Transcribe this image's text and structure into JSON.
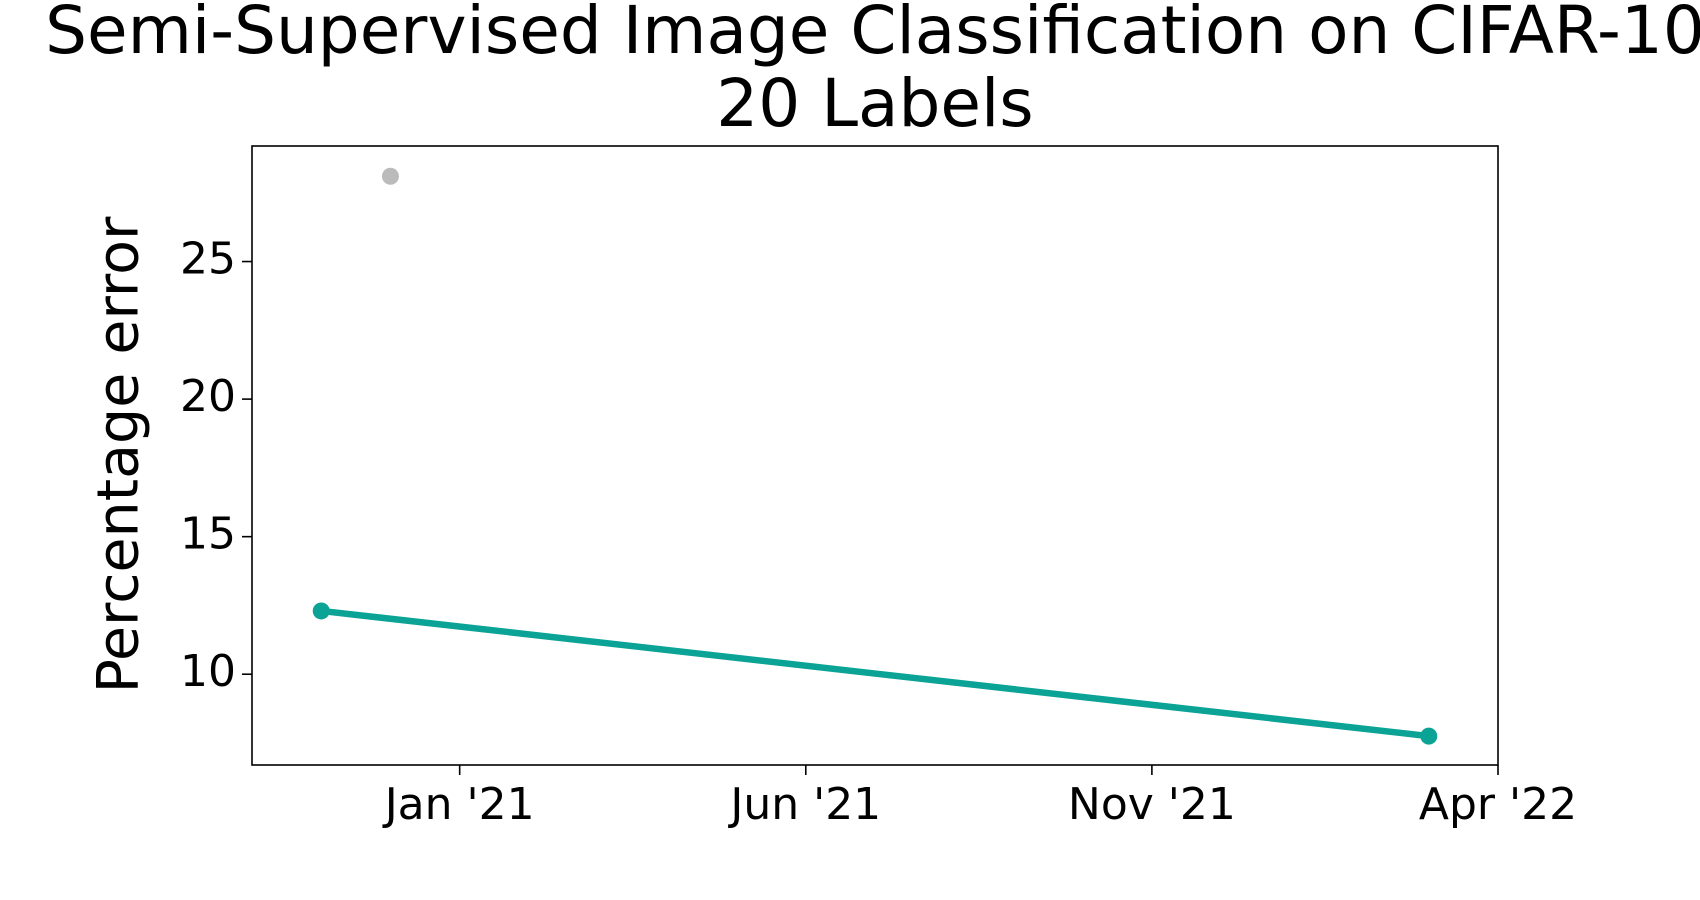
{
  "chart_data": {
    "type": "line",
    "title": [
      "Semi-Supervised Image Classification on CIFAR-10",
      "20 Labels"
    ],
    "y_label": "Percentage error",
    "series": [
      {
        "color": "#0aa396",
        "x": [
          "2020-11",
          "2022-03"
        ],
        "values": [
          12.3,
          7.75
        ],
        "markers": true,
        "line": true
      },
      {
        "color": "#bbbbbb",
        "x": [
          "2020-12"
        ],
        "values": [
          28.1
        ],
        "markers": true,
        "line": false
      }
    ],
    "xlim": [
      "2020-10",
      "2022-04"
    ],
    "xticks": [
      {
        "value": "2021-01",
        "label": "Jan '21"
      },
      {
        "value": "2021-06",
        "label": "Jun '21"
      },
      {
        "value": "2021-11",
        "label": "Nov '21"
      },
      {
        "value": "2022-04",
        "label": "Apr '22"
      }
    ],
    "ylim": [
      6.7,
      29.2
    ],
    "yticks": [
      10,
      15,
      20,
      25
    ],
    "grid": false
  }
}
